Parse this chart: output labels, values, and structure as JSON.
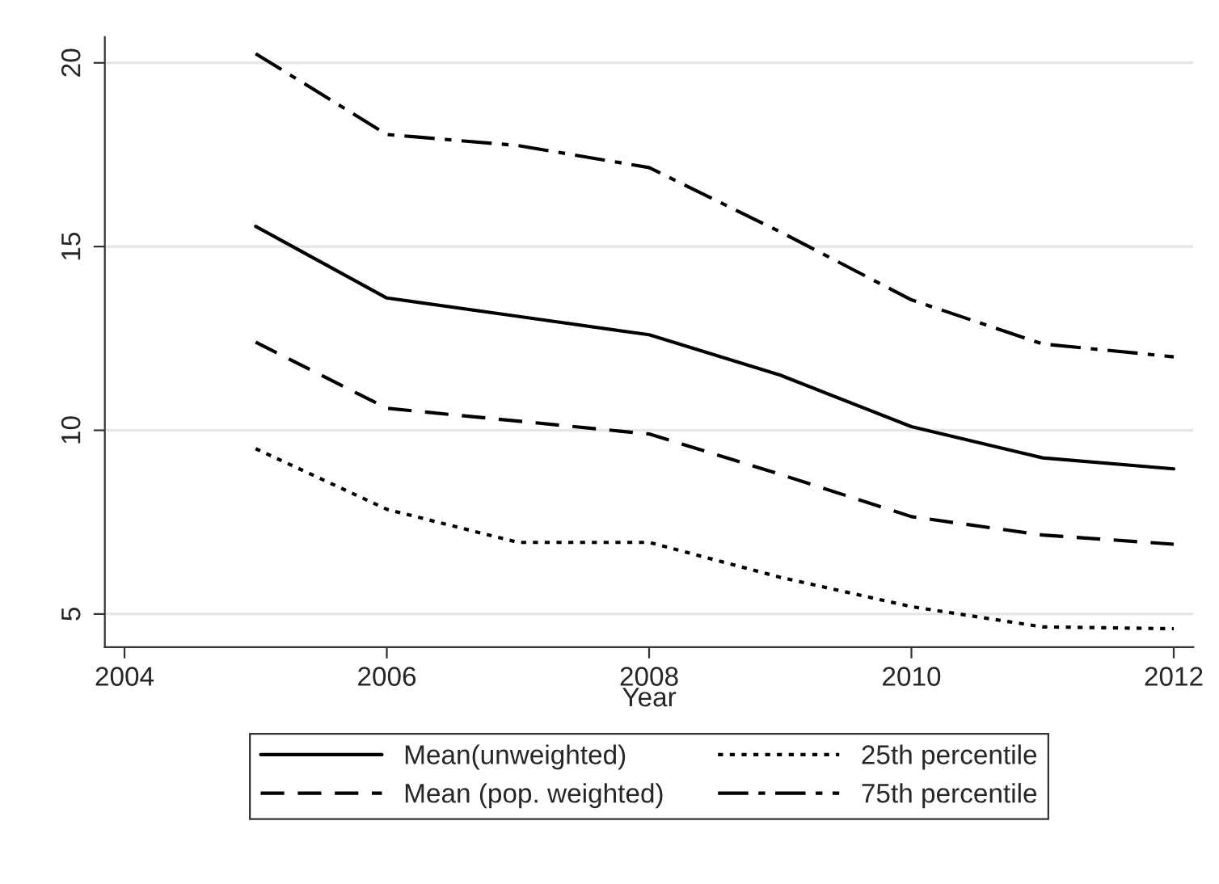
{
  "chart_data": {
    "type": "line",
    "xlabel": "Year",
    "x": [
      2005,
      2006,
      2007,
      2008,
      2009,
      2010,
      2011,
      2012
    ],
    "series": [
      {
        "name": "Mean(unweighted)",
        "color": "#000000",
        "line_style": "solid",
        "values": [
          15.55,
          13.6,
          13.1,
          12.6,
          11.5,
          10.1,
          9.25,
          8.95
        ]
      },
      {
        "name": "Mean (pop. weighted)",
        "color": "#000000",
        "line_style": "dashed",
        "values": [
          12.4,
          10.6,
          10.25,
          9.9,
          8.8,
          7.65,
          7.15,
          6.9
        ]
      },
      {
        "name": "25th percentile",
        "color": "#000000",
        "line_style": "dotted",
        "values": [
          9.5,
          7.85,
          6.95,
          6.95,
          6.0,
          5.2,
          4.65,
          4.6
        ]
      },
      {
        "name": "75th percentile",
        "color": "#000000",
        "line_style": "dashdot",
        "values": [
          20.25,
          18.05,
          17.75,
          17.15,
          15.4,
          13.55,
          12.35,
          12.0
        ]
      }
    ],
    "xlim": [
      2003.85,
      2012.15
    ],
    "xticks": [
      2004,
      2006,
      2008,
      2010,
      2012
    ],
    "ylim": [
      4.1,
      20.7
    ],
    "yticks": [
      5,
      10,
      15,
      20
    ],
    "grid": "y",
    "legend": "bottom",
    "marker": "none"
  }
}
